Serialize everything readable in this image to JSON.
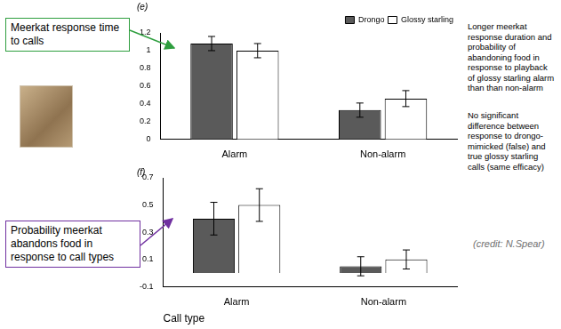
{
  "chart_data": [
    {
      "type": "bar",
      "title": "(e)",
      "categories": [
        "Alarm",
        "Non-alarm"
      ],
      "series": [
        {
          "name": "Drongo",
          "color": "#5a5a5a",
          "values": [
            1.08,
            0.33
          ],
          "errors": [
            0.08,
            0.08
          ]
        },
        {
          "name": "Glossy starling",
          "color": "#ffffff",
          "values": [
            1.0,
            0.46
          ],
          "errors": [
            0.08,
            0.09
          ]
        }
      ],
      "ylim": [
        0,
        1.2
      ],
      "yticks": [
        0,
        0.2,
        0.4,
        0.6,
        0.8,
        1,
        1.2
      ],
      "grid": false,
      "legend": "top-right",
      "annotations": [
        "Meerkat response time to calls",
        "Longer meerkat response duration and probability of abandoning food in response to playback of glossy starling alarm than than non-alarm"
      ]
    },
    {
      "type": "bar",
      "title": "(f)",
      "x_label": "Call type",
      "categories": [
        "Alarm",
        "Non-alarm"
      ],
      "series": [
        {
          "name": "Drongo",
          "color": "#5a5a5a",
          "values": [
            0.4,
            0.05
          ],
          "errors": [
            0.12,
            0.07
          ]
        },
        {
          "name": "Glossy starling",
          "color": "#ffffff",
          "values": [
            0.5,
            0.1
          ],
          "errors": [
            0.12,
            0.07
          ]
        }
      ],
      "ylim": [
        -0.1,
        0.7
      ],
      "yticks": [
        -0.1,
        0.1,
        0.3,
        0.5,
        0.7
      ],
      "grid": false,
      "annotations": [
        "Probability meerkat abandons food in response to call types",
        "No significant difference between response to drongo-mimicked (false) and true glossy starling calls (same efficacy)",
        "(credit: N.Spear)"
      ]
    }
  ]
}
